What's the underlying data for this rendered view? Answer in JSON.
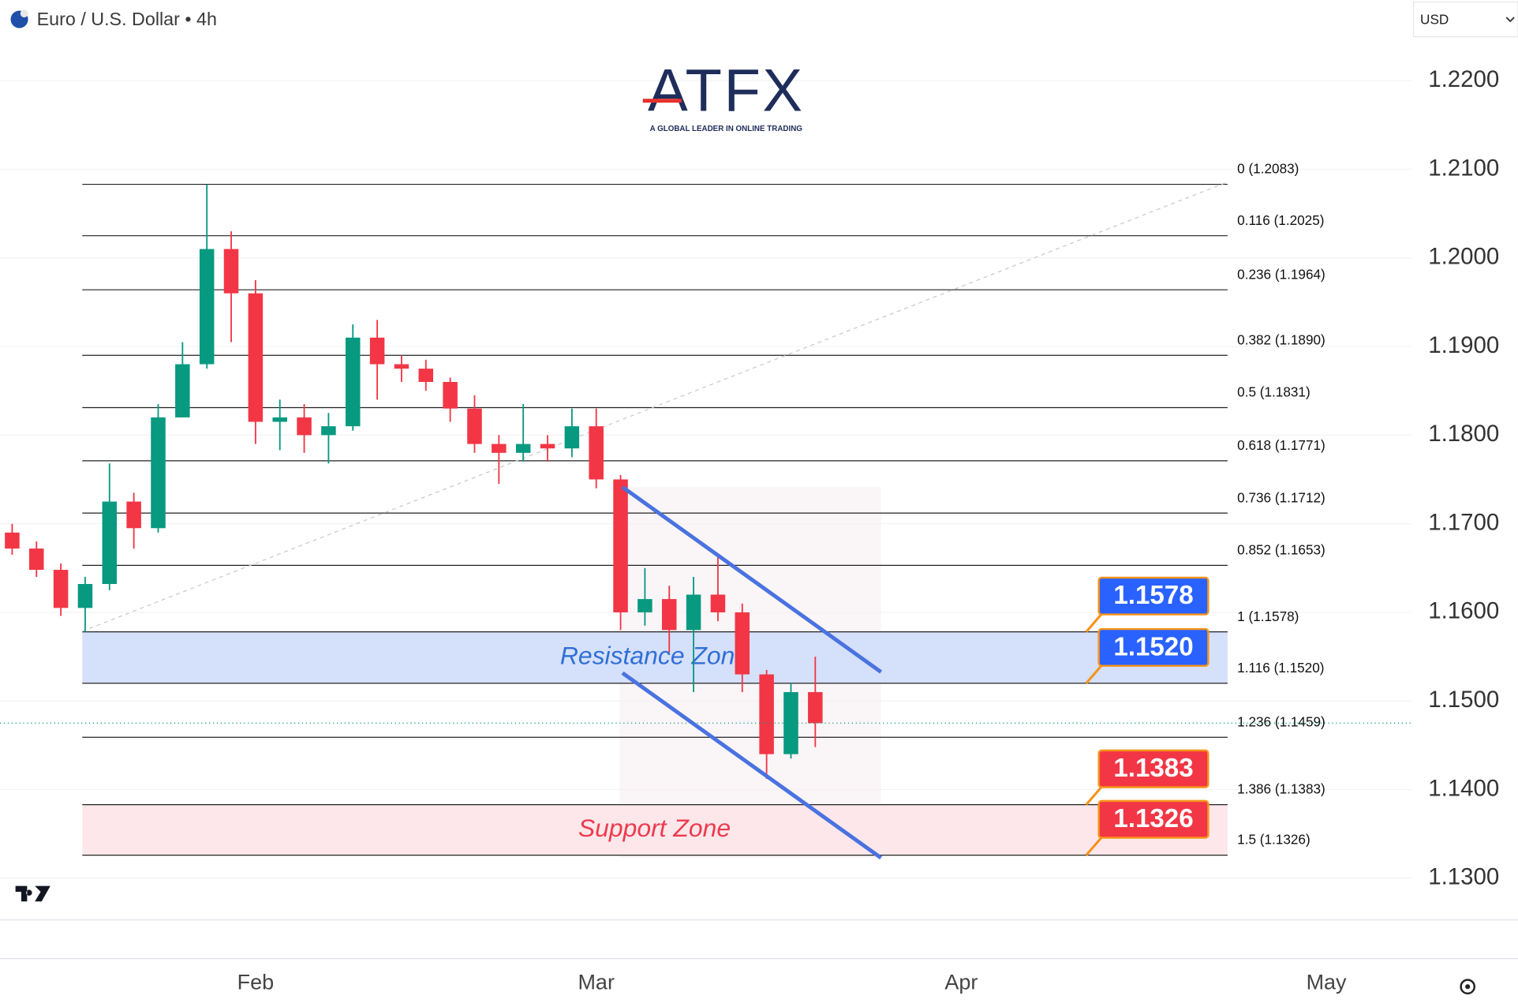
{
  "chart_data": {
    "type": "candlestick",
    "title": "Euro / U.S. Dollar • 4h",
    "currency": "USD",
    "logo": "ATFX",
    "tagline": "A GLOBAL LEADER IN ONLINE TRADING",
    "categories": [
      null,
      null,
      null,
      null,
      null,
      null,
      null,
      null,
      null,
      null,
      "Feb",
      null,
      null,
      null,
      null,
      null,
      null,
      null,
      null,
      null,
      null,
      null,
      null,
      null,
      "Mar",
      null,
      null,
      null,
      null,
      null,
      null,
      null,
      null,
      null,
      null,
      null,
      null,
      null,
      null,
      "Apr",
      null,
      null,
      null,
      null,
      null,
      null,
      null,
      null,
      null,
      null,
      null,
      null,
      null,
      null,
      "May",
      null,
      null,
      null
    ],
    "open": [
      1.169,
      1.1672,
      1.1648,
      1.1605,
      1.1632,
      1.1725,
      1.1695,
      1.182,
      1.188,
      1.201,
      1.196,
      1.1815,
      1.182,
      1.18,
      1.181,
      1.191,
      1.188,
      1.1875,
      1.186,
      1.183,
      1.179,
      1.178,
      1.179,
      1.1785,
      1.181,
      1.175,
      1.16,
      1.1615,
      1.158,
      1.162,
      1.16,
      1.153,
      1.144,
      1.151,
      null,
      null,
      null,
      null,
      null,
      null,
      null,
      null,
      null,
      null,
      null,
      null,
      null,
      null,
      null,
      null,
      null,
      null,
      null,
      null,
      null,
      null,
      null,
      null
    ],
    "high": [
      1.17,
      1.168,
      1.1655,
      1.164,
      1.1768,
      1.1735,
      1.1835,
      1.1905,
      1.2083,
      1.203,
      1.1975,
      1.184,
      1.1835,
      1.1825,
      1.1925,
      1.193,
      1.189,
      1.1885,
      1.1865,
      1.1845,
      1.18,
      1.1835,
      1.18,
      1.183,
      1.183,
      1.1755,
      1.165,
      1.163,
      1.164,
      1.1665,
      1.161,
      1.1535,
      1.152,
      1.155,
      null,
      null,
      null,
      null,
      null,
      null,
      null,
      null,
      null,
      null,
      null,
      null,
      null,
      null,
      null,
      null,
      null,
      null,
      null,
      null,
      null,
      null,
      null,
      null
    ],
    "low": [
      1.1665,
      1.164,
      1.1596,
      1.1578,
      1.1625,
      1.1672,
      1.169,
      1.182,
      1.1875,
      1.1905,
      1.179,
      1.1783,
      1.178,
      1.1768,
      1.1805,
      1.184,
      1.186,
      1.185,
      1.1815,
      1.178,
      1.1745,
      1.177,
      1.177,
      1.1775,
      1.174,
      1.158,
      1.1585,
      1.1555,
      1.151,
      1.159,
      1.151,
      1.1412,
      1.1435,
      1.1448,
      null,
      null,
      null,
      null,
      null,
      null,
      null,
      null,
      null,
      null,
      null,
      null,
      null,
      null,
      null,
      null,
      null,
      null,
      null,
      null,
      null,
      null,
      null,
      null
    ],
    "close": [
      1.1672,
      1.1648,
      1.1605,
      1.1632,
      1.1725,
      1.1695,
      1.182,
      1.188,
      1.201,
      1.196,
      1.1815,
      1.182,
      1.18,
      1.181,
      1.191,
      1.188,
      1.1875,
      1.186,
      1.183,
      1.179,
      1.178,
      1.179,
      1.1785,
      1.181,
      1.175,
      1.16,
      1.1615,
      1.158,
      1.162,
      1.16,
      1.153,
      1.144,
      1.151,
      1.1475,
      null,
      null,
      null,
      null,
      null,
      null,
      null,
      null,
      null,
      null,
      null,
      null,
      null,
      null,
      null,
      null,
      null,
      null,
      null,
      null,
      null,
      null,
      null,
      null
    ],
    "up_color": "#089981",
    "down_color": "#f23645",
    "ylim": [
      1.1253,
      1.2291
    ],
    "yticks": [
      {
        "value": 1.13,
        "label": "1.1300"
      },
      {
        "value": 1.14,
        "label": "1.1400"
      },
      {
        "value": 1.15,
        "label": "1.1500"
      },
      {
        "value": 1.16,
        "label": "1.1600"
      },
      {
        "value": 1.17,
        "label": "1.1700"
      },
      {
        "value": 1.18,
        "label": "1.1800"
      },
      {
        "value": 1.19,
        "label": "1.1900"
      },
      {
        "value": 1.2,
        "label": "1.2000"
      },
      {
        "value": 1.21,
        "label": "1.2100"
      },
      {
        "value": 1.22,
        "label": "1.2200"
      }
    ],
    "grid": true,
    "fib_levels": {
      "values": [
        1.2083,
        1.2025,
        1.1964,
        1.189,
        1.1831,
        1.1771,
        1.1712,
        1.1653,
        1.1578,
        1.152,
        1.1459,
        1.1383,
        1.1326
      ],
      "value_labels": [
        "0 (1.2083)",
        "0.116 (1.2025)",
        "0.236 (1.1964)",
        "0.382 (1.1890)",
        "0.5 (1.1831)",
        "0.618 (1.1771)",
        "0.736 (1.1712)",
        "0.852 (1.1653)",
        "1 (1.1578)",
        "1.116 (1.1520)",
        "1.236 (1.1459)",
        "1.386 (1.1383)",
        "1.5 (1.1326)"
      ]
    },
    "zones": [
      {
        "name": "Resistance Zone",
        "range": [
          1.152,
          1.1578
        ],
        "color": "#d5e0fb",
        "text_color": "#2f6fd6"
      },
      {
        "name": "Support Zone",
        "range": [
          1.1326,
          1.1383
        ],
        "color": "#fde7ea",
        "text_color": "#ee3b4f"
      }
    ],
    "price_tags": {
      "values": [
        1.1578,
        1.152,
        1.1383,
        1.1326
      ],
      "value_labels": [
        "1.1578",
        "1.1520",
        "1.1383",
        "1.1326"
      ],
      "colors": [
        "#2962ff",
        "#2962ff",
        "#f23645",
        "#f23645"
      ]
    }
  }
}
